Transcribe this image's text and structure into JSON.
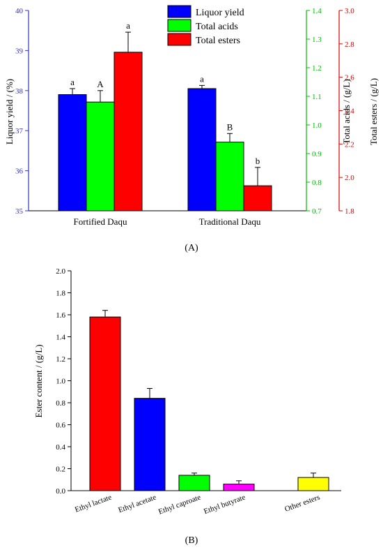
{
  "chart_data": [
    {
      "id": "A",
      "type": "bar",
      "panel_label": "(A)",
      "categories": [
        "Fortified Daqu",
        "Traditional Daqu"
      ],
      "legend_position": "top-center",
      "series": [
        {
          "name": "Liquor yield",
          "color": "#0000ff",
          "axis": "y1",
          "values": [
            37.9,
            38.05
          ],
          "errors": [
            0.15,
            0.08
          ],
          "labels": [
            "a",
            "a"
          ]
        },
        {
          "name": "Total acids",
          "color": "#00ff00",
          "axis": "y2",
          "values": [
            1.08,
            0.94
          ],
          "errors": [
            0.04,
            0.03
          ],
          "labels": [
            "A",
            "B"
          ]
        },
        {
          "name": "Total esters",
          "color": "#ff0000",
          "axis": "y3",
          "values": [
            2.75,
            1.95
          ],
          "errors": [
            0.12,
            0.11
          ],
          "labels": [
            "a",
            "b"
          ]
        }
      ],
      "axes": {
        "y1": {
          "label": "Liquor yield / (%)",
          "color": "#3333cc",
          "lim": [
            35,
            40
          ],
          "ticks": [
            "35",
            "36",
            "37",
            "38",
            "39",
            "40"
          ]
        },
        "y2": {
          "label": "Total acids / (g/L)",
          "color": "#00bb00",
          "lim": [
            0.7,
            1.4
          ],
          "ticks": [
            "0.7",
            "0.8",
            "0.9",
            "1.0",
            "1.1",
            "1.2",
            "1.3",
            "1.4"
          ]
        },
        "y3": {
          "label": "Total esters / (g/L)",
          "color": "#dd0000",
          "lim": [
            1.8,
            3.0
          ],
          "ticks": [
            "1.8",
            "2.0",
            "2.2",
            "2.4",
            "2.6",
            "2.8",
            "3.0"
          ]
        }
      }
    },
    {
      "id": "B",
      "type": "bar",
      "panel_label": "(B)",
      "categories": [
        "Ethyl lactate",
        "Ethyl acetate",
        "Ethyl caproate",
        "Ethyl butyrate",
        "Other esters"
      ],
      "values": [
        1.58,
        0.84,
        0.14,
        0.06,
        0.12
      ],
      "errors": [
        0.06,
        0.09,
        0.02,
        0.03,
        0.04
      ],
      "colors": [
        "#ff0000",
        "#0000ff",
        "#00ff00",
        "#ff00ff",
        "#ffff00"
      ],
      "ylabel": "Ester content / (g/L)",
      "ylim": [
        0,
        2.0
      ],
      "ticks": [
        "0.0",
        "0.2",
        "0.4",
        "0.6",
        "0.8",
        "1.0",
        "1.2",
        "1.4",
        "1.6",
        "1.8",
        "2.0"
      ]
    }
  ]
}
